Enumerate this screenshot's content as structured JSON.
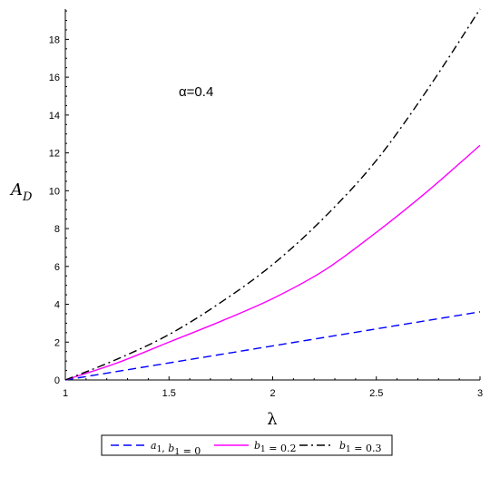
{
  "chart_data": {
    "type": "line",
    "xlabel": "λ",
    "ylabel_main": "A",
    "ylabel_sub": "D",
    "annotation": "α=0.4",
    "xlim": [
      1,
      3
    ],
    "ylim": [
      0,
      19.6
    ],
    "x_ticks": [
      "1",
      "1.5",
      "2",
      "2.5",
      "3"
    ],
    "y_ticks": [
      "0",
      "2",
      "4",
      "6",
      "8",
      "10",
      "12",
      "14",
      "16",
      "18"
    ],
    "legend_placement": "bottom",
    "series": [
      {
        "name": "a1, b1 = 0",
        "legend_parts": [
          [
            "a",
            "1"
          ],
          ", ",
          [
            "b",
            "1"
          ],
          " = 0"
        ],
        "color": "#0000ff",
        "dash": "dashed",
        "x": [
          1,
          1.25,
          1.5,
          1.75,
          2,
          2.25,
          2.5,
          2.75,
          3
        ],
        "values": [
          0,
          0.45,
          0.9,
          1.35,
          1.8,
          2.25,
          2.7,
          3.15,
          3.6
        ]
      },
      {
        "name": "b1 = 0.2",
        "legend_parts": [
          [
            "b",
            "1"
          ],
          " = 0.2"
        ],
        "color": "#ff00ff",
        "dash": "solid",
        "x": [
          1,
          1.25,
          1.5,
          1.75,
          2,
          2.25,
          2.5,
          2.75,
          3
        ],
        "values": [
          0,
          0.9,
          2.0,
          3.1,
          4.3,
          5.8,
          7.8,
          10.0,
          12.4
        ]
      },
      {
        "name": "b1 = 0.3",
        "legend_parts": [
          [
            "b",
            "1"
          ],
          " = 0.3"
        ],
        "color": "#000000",
        "dash": "dashdot",
        "x": [
          1,
          1.25,
          1.5,
          1.75,
          2,
          2.25,
          2.5,
          2.75,
          3
        ],
        "values": [
          0,
          1.1,
          2.4,
          4.1,
          6.1,
          8.6,
          11.6,
          15.4,
          19.6
        ]
      }
    ]
  }
}
